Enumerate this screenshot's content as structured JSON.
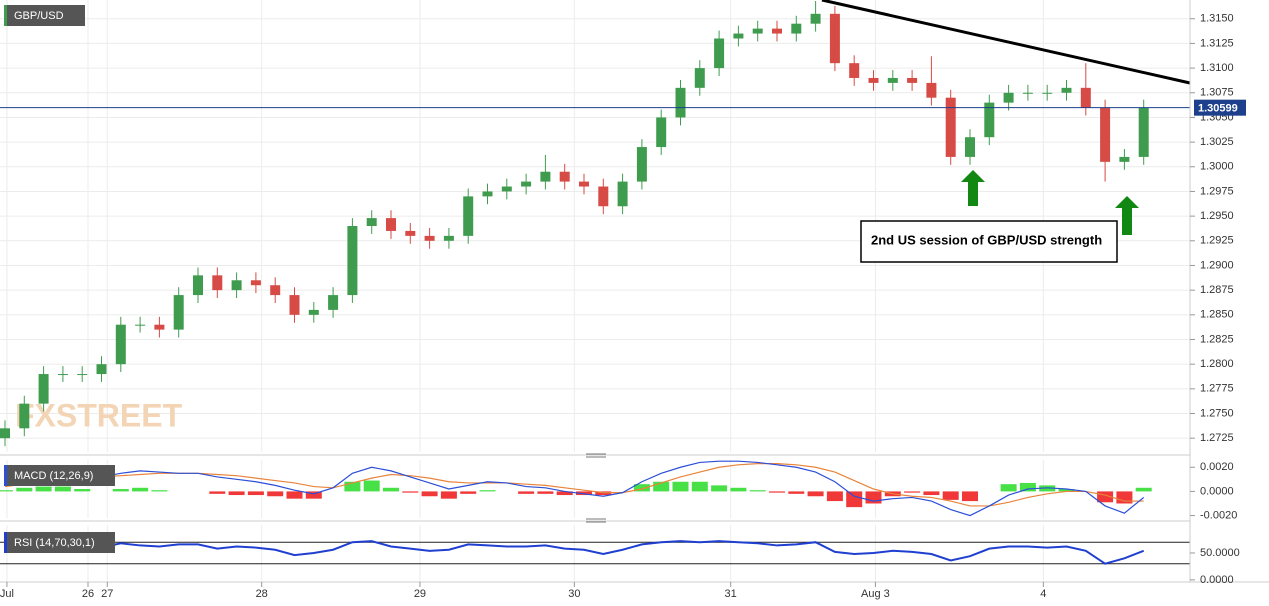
{
  "chart_data": [
    {
      "type": "candlestick",
      "title": "GBP/USD",
      "open": [
        1.2725,
        1.2735,
        1.276,
        1.279,
        1.279,
        1.279,
        1.28,
        1.284,
        1.284,
        1.2835,
        1.287,
        1.289,
        1.2875,
        1.2885,
        1.288,
        1.287,
        1.285,
        1.2855,
        1.287,
        1.294,
        1.2948,
        1.2935,
        1.293,
        1.2925,
        1.293,
        1.297,
        1.2975,
        1.298,
        1.2985,
        1.2995,
        1.2985,
        1.298,
        1.296,
        1.2985,
        1.302,
        1.305,
        1.308,
        1.31,
        1.313,
        1.3135,
        1.314,
        1.3135,
        1.3145,
        1.3155,
        1.3105,
        1.309,
        1.3085,
        1.309,
        1.3085,
        1.307,
        1.301,
        1.303,
        1.3065,
        1.3075,
        1.3075,
        1.3075,
        1.308,
        1.306,
        1.3005,
        1.301
      ],
      "high": [
        1.2743,
        1.2768,
        1.2798,
        1.2798,
        1.2798,
        1.2808,
        1.2848,
        1.2848,
        1.2848,
        1.2878,
        1.2898,
        1.2898,
        1.2893,
        1.2893,
        1.2888,
        1.2878,
        1.2863,
        1.2878,
        1.2948,
        1.2956,
        1.2956,
        1.2943,
        1.2938,
        1.2938,
        1.2978,
        1.2983,
        1.2988,
        1.2993,
        1.3012,
        1.3003,
        1.2993,
        1.2988,
        1.2993,
        1.3028,
        1.3058,
        1.3088,
        1.3108,
        1.3138,
        1.3143,
        1.3148,
        1.3148,
        1.3153,
        1.3168,
        1.3163,
        1.3113,
        1.3098,
        1.3098,
        1.3098,
        1.3112,
        1.3078,
        1.3038,
        1.3073,
        1.3083,
        1.3083,
        1.3083,
        1.3088,
        1.3105,
        1.3068,
        1.3018,
        1.3068
      ],
      "low": [
        1.2717,
        1.2727,
        1.2752,
        1.2782,
        1.2782,
        1.2782,
        1.2792,
        1.2832,
        1.2827,
        1.2827,
        1.2862,
        1.2867,
        1.2867,
        1.2872,
        1.2862,
        1.2842,
        1.2842,
        1.2847,
        1.2862,
        1.2932,
        1.2927,
        1.2922,
        1.2917,
        1.2917,
        1.2922,
        1.2962,
        1.2967,
        1.2972,
        1.2977,
        1.2977,
        1.2972,
        1.2952,
        1.2952,
        1.2977,
        1.3012,
        1.3042,
        1.3072,
        1.3092,
        1.3122,
        1.3127,
        1.3127,
        1.3127,
        1.3137,
        1.3097,
        1.3082,
        1.3077,
        1.3077,
        1.3077,
        1.3062,
        1.3002,
        1.3002,
        1.3022,
        1.3057,
        1.3067,
        1.3067,
        1.3067,
        1.3052,
        1.2985,
        1.2997,
        1.3002
      ],
      "close": [
        1.2735,
        1.276,
        1.279,
        1.279,
        1.279,
        1.28,
        1.284,
        1.284,
        1.2835,
        1.287,
        1.289,
        1.2875,
        1.2885,
        1.288,
        1.287,
        1.285,
        1.2855,
        1.287,
        1.294,
        1.2948,
        1.2935,
        1.293,
        1.2925,
        1.293,
        1.297,
        1.2975,
        1.298,
        1.2985,
        1.2995,
        1.2985,
        1.298,
        1.296,
        1.2985,
        1.302,
        1.305,
        1.308,
        1.31,
        1.313,
        1.3135,
        1.314,
        1.3135,
        1.3145,
        1.3155,
        1.3105,
        1.309,
        1.3085,
        1.309,
        1.3085,
        1.307,
        1.301,
        1.303,
        1.3065,
        1.3075,
        1.3075,
        1.3075,
        1.308,
        1.306,
        1.3005,
        1.301,
        1.306
      ],
      "up_color": "#3f9c4f",
      "down_color": "#d64b45",
      "ylim": [
        1.2711,
        1.3169
      ],
      "yticks": [
        {
          "value": 1.315,
          "label": "1.3150"
        },
        {
          "value": 1.3125,
          "label": "1.3125"
        },
        {
          "value": 1.31,
          "label": "1.3100"
        },
        {
          "value": 1.3075,
          "label": "1.3075"
        },
        {
          "value": 1.305,
          "label": "1.3050"
        },
        {
          "value": 1.3025,
          "label": "1.3025"
        },
        {
          "value": 1.3,
          "label": "1.3000"
        },
        {
          "value": 1.2975,
          "label": "1.2975"
        },
        {
          "value": 1.295,
          "label": "1.2950"
        },
        {
          "value": 1.2925,
          "label": "1.2925"
        },
        {
          "value": 1.29,
          "label": "1.2900"
        },
        {
          "value": 1.2875,
          "label": "1.2875"
        },
        {
          "value": 1.285,
          "label": "1.2850"
        },
        {
          "value": 1.2825,
          "label": "1.2825"
        },
        {
          "value": 1.28,
          "label": "1.2800"
        },
        {
          "value": 1.2775,
          "label": "1.2775"
        },
        {
          "value": 1.275,
          "label": "1.2750"
        },
        {
          "value": 1.2725,
          "label": "1.2725"
        }
      ],
      "grid": true,
      "last_price": 1.30599,
      "last_price_color": "#1d3f8c",
      "annotation": "2nd US session of GBP/USD strength",
      "watermark": "FXSTREET"
    },
    {
      "type": "macd",
      "title": "MACD (12,26,9)",
      "macd": {
        "color": "#2b4fd8",
        "values": [
          0.0005,
          0.0009,
          0.0012,
          0.0014,
          0.0013,
          0.0012,
          0.0015,
          0.0017,
          0.0016,
          0.0015,
          0.0015,
          0.0012,
          0.001,
          0.0008,
          0.0005,
          0.0001,
          -0.0002,
          0.0003,
          0.0015,
          0.002,
          0.0017,
          0.0012,
          0.0007,
          0.0002,
          0.0005,
          0.0008,
          0.0007,
          0.0004,
          0.0003,
          0.0,
          -0.0002,
          -0.0004,
          -0.0001,
          0.0008,
          0.0015,
          0.002,
          0.0024,
          0.0025,
          0.0025,
          0.0024,
          0.0022,
          0.002,
          0.0016,
          0.0008,
          -0.0004,
          -0.0008,
          -0.0006,
          -0.0005,
          -0.0008,
          -0.0015,
          -0.002,
          -0.0012,
          -0.0003,
          0.0002,
          0.0003,
          0.0002,
          0.0,
          -0.0012,
          -0.0018,
          -0.0005
        ]
      },
      "signal": {
        "color": "#e8843a",
        "values": [
          0.0004,
          0.0006,
          0.0008,
          0.001,
          0.0011,
          0.0012,
          0.0013,
          0.0014,
          0.0015,
          0.0015,
          0.0015,
          0.0014,
          0.0013,
          0.0011,
          0.0009,
          0.0007,
          0.0004,
          0.0003,
          0.0007,
          0.0011,
          0.0014,
          0.0013,
          0.0011,
          0.0008,
          0.0007,
          0.0007,
          0.0007,
          0.0006,
          0.0005,
          0.0003,
          0.0001,
          -0.0001,
          -0.0001,
          0.0002,
          0.0007,
          0.0012,
          0.0016,
          0.002,
          0.0022,
          0.0023,
          0.0023,
          0.0022,
          0.002,
          0.0016,
          0.0009,
          0.0002,
          -0.0002,
          -0.0004,
          -0.0005,
          -0.0008,
          -0.0012,
          -0.0012,
          -0.0009,
          -0.0005,
          -0.0002,
          0.0,
          0.0,
          -0.0003,
          -0.0008,
          -0.0008
        ]
      },
      "histogram": {
        "up_color": "#33dd33",
        "down_color": "#ee2222",
        "values": [
          0.0001,
          0.0003,
          0.0004,
          0.0004,
          0.0002,
          0.0,
          0.0002,
          0.0003,
          0.0001,
          0.0,
          0.0,
          -0.0002,
          -0.0003,
          -0.0003,
          -0.0004,
          -0.0006,
          -0.0006,
          0.0,
          0.0008,
          0.0009,
          0.0003,
          -0.0001,
          -0.0004,
          -0.0006,
          -0.0002,
          0.0001,
          0.0,
          -0.0002,
          -0.0002,
          -0.0003,
          -0.0003,
          -0.0003,
          0.0,
          0.0006,
          0.0008,
          0.0008,
          0.0008,
          0.0005,
          0.0003,
          0.0001,
          -0.0001,
          -0.0002,
          -0.0004,
          -0.0008,
          -0.0013,
          -0.001,
          -0.0004,
          -0.0001,
          -0.0003,
          -0.0007,
          -0.0008,
          0.0,
          0.0006,
          0.0007,
          0.0005,
          0.0002,
          0.0,
          -0.0009,
          -0.001,
          0.0003
        ]
      },
      "ylim": [
        -0.0022,
        0.0026
      ],
      "yticks": [
        {
          "value": 0.002,
          "label": "0.0020"
        },
        {
          "value": 0,
          "label": "0.0000"
        },
        {
          "value": -0.002,
          "label": "-0.0020"
        }
      ]
    },
    {
      "type": "line",
      "title": "RSI (14,70,30,1)",
      "color": "#1f3fd0",
      "values": [
        60,
        65,
        72,
        68,
        62,
        60,
        68,
        64,
        62,
        66,
        66,
        58,
        62,
        60,
        56,
        46,
        50,
        56,
        70,
        72,
        62,
        58,
        54,
        56,
        66,
        64,
        62,
        62,
        64,
        58,
        56,
        48,
        56,
        66,
        70,
        72,
        70,
        72,
        70,
        68,
        64,
        66,
        70,
        52,
        48,
        50,
        54,
        52,
        48,
        36,
        44,
        58,
        62,
        62,
        60,
        62,
        54,
        30,
        40,
        54
      ],
      "levels": [
        70,
        30
      ],
      "ylim": [
        -4,
        102
      ],
      "yticks": [
        {
          "value": 50,
          "label": "50.0000"
        },
        {
          "value": 0,
          "label": "0.0000"
        }
      ],
      "xticks": [
        {
          "value": 0.1,
          "label": "Jul"
        },
        {
          "value": 4.3,
          "label": "26"
        },
        {
          "value": 5.3,
          "label": "27"
        },
        {
          "value": 13.3,
          "label": "28"
        },
        {
          "value": 21.5,
          "label": "29"
        },
        {
          "value": 29.5,
          "label": "30"
        },
        {
          "value": 37.6,
          "label": "31"
        },
        {
          "value": 45.1,
          "label": "Aug 3"
        },
        {
          "value": 53.8,
          "label": "4"
        }
      ]
    }
  ]
}
